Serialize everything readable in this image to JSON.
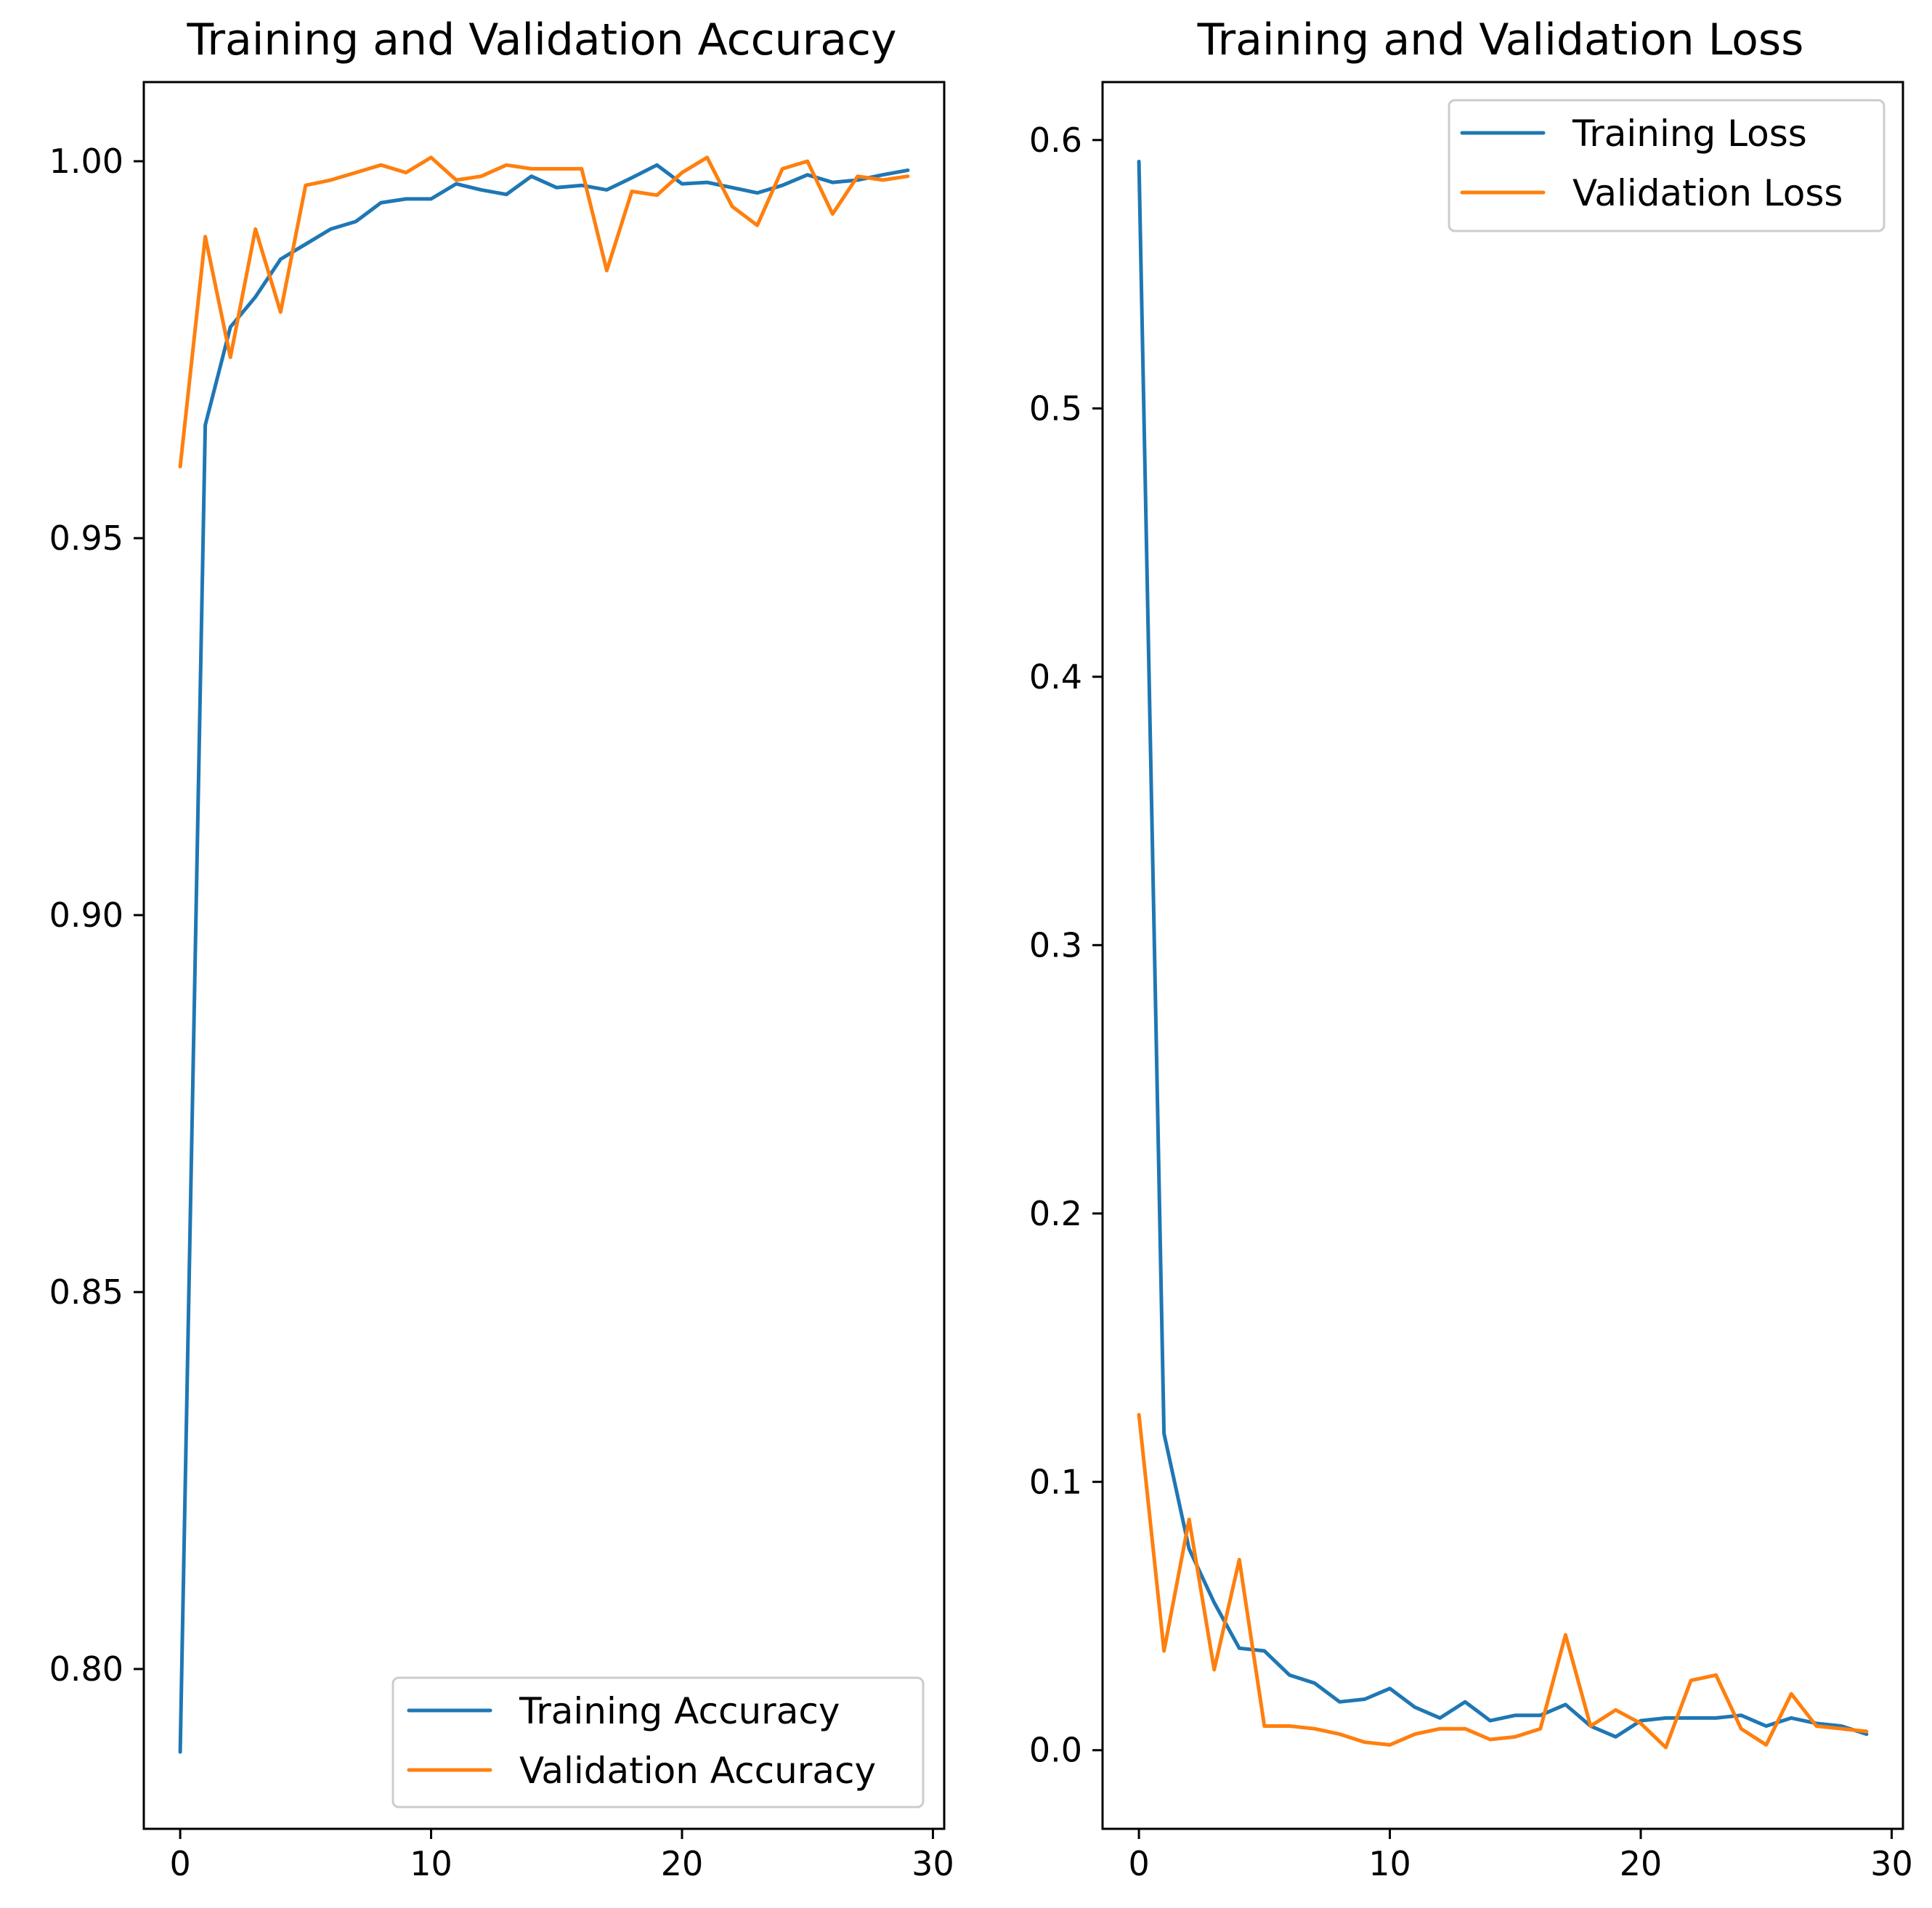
{
  "colors": {
    "training": "#1f77b4",
    "validation": "#ff7f0e"
  },
  "chart_data": [
    {
      "type": "line",
      "title": "Training and Validation Accuracy",
      "xlabel": "",
      "ylabel": "",
      "xlim": [
        -1.45,
        30.45
      ],
      "ylim": [
        0.7788,
        1.0105
      ],
      "xticks": [
        0,
        10,
        20,
        30
      ],
      "xtick_labels": [
        "0",
        "10",
        "20",
        "30"
      ],
      "yticks": [
        0.8,
        0.85,
        0.9,
        0.95,
        1.0
      ],
      "ytick_labels": [
        "0.80",
        "0.85",
        "0.90",
        "0.95",
        "1.00"
      ],
      "legend_position": "bottom-right",
      "series": [
        {
          "name": "Training Accuracy",
          "x": [
            0,
            1,
            2,
            3,
            4,
            5,
            6,
            7,
            8,
            9,
            10,
            11,
            12,
            13,
            14,
            15,
            16,
            17,
            18,
            19,
            20,
            21,
            22,
            23,
            24,
            25,
            26,
            27,
            28,
            29
          ],
          "values": [
            0.789,
            0.965,
            0.978,
            0.982,
            0.987,
            0.989,
            0.991,
            0.992,
            0.9945,
            0.995,
            0.995,
            0.997,
            0.9962,
            0.9956,
            0.998,
            0.9965,
            0.9968,
            0.9962,
            0.9978,
            0.9995,
            0.997,
            0.9972,
            0.9965,
            0.9958,
            0.9968,
            0.9982,
            0.9972,
            0.9975,
            0.9982,
            0.9988
          ]
        },
        {
          "name": "Validation Accuracy",
          "x": [
            0,
            1,
            2,
            3,
            4,
            5,
            6,
            7,
            8,
            9,
            10,
            11,
            12,
            13,
            14,
            15,
            16,
            17,
            18,
            19,
            20,
            21,
            22,
            23,
            24,
            25,
            26,
            27,
            28,
            29
          ],
          "values": [
            0.9595,
            0.99,
            0.974,
            0.991,
            0.98,
            0.9968,
            0.9975,
            0.9985,
            0.9995,
            0.9985,
            1.0005,
            0.9975,
            0.998,
            0.9995,
            0.999,
            0.999,
            0.999,
            0.9855,
            0.996,
            0.9955,
            0.9985,
            1.0005,
            0.994,
            0.9915,
            0.999,
            1.0,
            0.993,
            0.998,
            0.9975,
            0.998
          ]
        }
      ]
    },
    {
      "type": "line",
      "title": "Training and Validation Loss",
      "xlabel": "",
      "ylabel": "",
      "xlim": [
        -1.45,
        30.45
      ],
      "ylim": [
        -0.0293,
        0.6216
      ],
      "xticks": [
        0,
        10,
        20,
        30
      ],
      "xtick_labels": [
        "0",
        "10",
        "20",
        "30"
      ],
      "yticks": [
        0.0,
        0.1,
        0.2,
        0.3,
        0.4,
        0.5,
        0.6
      ],
      "ytick_labels": [
        "0.0",
        "0.1",
        "0.2",
        "0.3",
        "0.4",
        "0.5",
        "0.6"
      ],
      "legend_position": "top-right",
      "series": [
        {
          "name": "Training Loss",
          "x": [
            0,
            1,
            2,
            3,
            4,
            5,
            6,
            7,
            8,
            9,
            10,
            11,
            12,
            13,
            14,
            15,
            16,
            17,
            18,
            19,
            20,
            21,
            22,
            23,
            24,
            25,
            26,
            27,
            28,
            29
          ],
          "values": [
            0.592,
            0.118,
            0.075,
            0.055,
            0.038,
            0.037,
            0.028,
            0.025,
            0.018,
            0.019,
            0.023,
            0.016,
            0.012,
            0.018,
            0.011,
            0.013,
            0.013,
            0.017,
            0.009,
            0.005,
            0.011,
            0.012,
            0.012,
            0.012,
            0.013,
            0.009,
            0.012,
            0.01,
            0.009,
            0.006
          ]
        },
        {
          "name": "Validation Loss",
          "x": [
            0,
            1,
            2,
            3,
            4,
            5,
            6,
            7,
            8,
            9,
            10,
            11,
            12,
            13,
            14,
            15,
            16,
            17,
            18,
            19,
            20,
            21,
            22,
            23,
            24,
            25,
            26,
            27,
            28,
            29
          ],
          "values": [
            0.125,
            0.037,
            0.086,
            0.03,
            0.071,
            0.009,
            0.009,
            0.008,
            0.006,
            0.003,
            0.002,
            0.006,
            0.008,
            0.008,
            0.004,
            0.005,
            0.008,
            0.043,
            0.009,
            0.015,
            0.01,
            0.001,
            0.026,
            0.028,
            0.008,
            0.002,
            0.021,
            0.009,
            0.008,
            0.007
          ]
        }
      ]
    }
  ]
}
